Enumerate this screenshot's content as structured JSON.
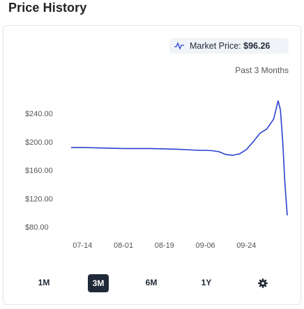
{
  "title": "Price History",
  "market": {
    "label": "Market Price:",
    "value": "$96.26"
  },
  "range_label": "Past 3 Months",
  "buttons": [
    {
      "label": "1M",
      "active": false
    },
    {
      "label": "3M",
      "active": true
    },
    {
      "label": "6M",
      "active": false
    },
    {
      "label": "1Y",
      "active": false
    }
  ],
  "icons": {
    "market": "pulse-icon",
    "settings": "gear-icon"
  },
  "colors": {
    "line": "#2b3fcf",
    "active_button": "#1f2937",
    "pill_bg": "#f0f3f8"
  },
  "chart_data": {
    "type": "line",
    "x_ticks": [
      "07-14",
      "08-01",
      "08-19",
      "09-06",
      "09-24"
    ],
    "y_ticks": [
      "$240.00",
      "$200.00",
      "$160.00",
      "$120.00",
      "$80.00"
    ],
    "y_tick_values": [
      240,
      200,
      160,
      120,
      80
    ],
    "ylim": [
      80,
      240
    ],
    "series": [
      {
        "x": [
          "07-09",
          "07-14",
          "07-20",
          "07-26",
          "08-01",
          "08-07",
          "08-13",
          "08-19",
          "08-25",
          "08-31",
          "09-03",
          "09-06",
          "09-09",
          "09-12",
          "09-15",
          "09-18",
          "09-21",
          "09-24",
          "09-27",
          "09-30",
          "10-03",
          "10-06",
          "10-07",
          "10-08",
          "10-09",
          "10-10",
          "10-11",
          "10-12"
        ],
        "y": [
          192,
          192,
          191.5,
          191,
          190.5,
          190.5,
          190.5,
          190,
          189.5,
          188.5,
          188,
          188,
          187.5,
          186,
          182,
          181,
          183,
          189,
          200,
          212,
          218,
          232,
          245,
          258,
          245,
          200,
          140,
          96.26
        ]
      }
    ],
    "grid": false,
    "legend": "none"
  }
}
